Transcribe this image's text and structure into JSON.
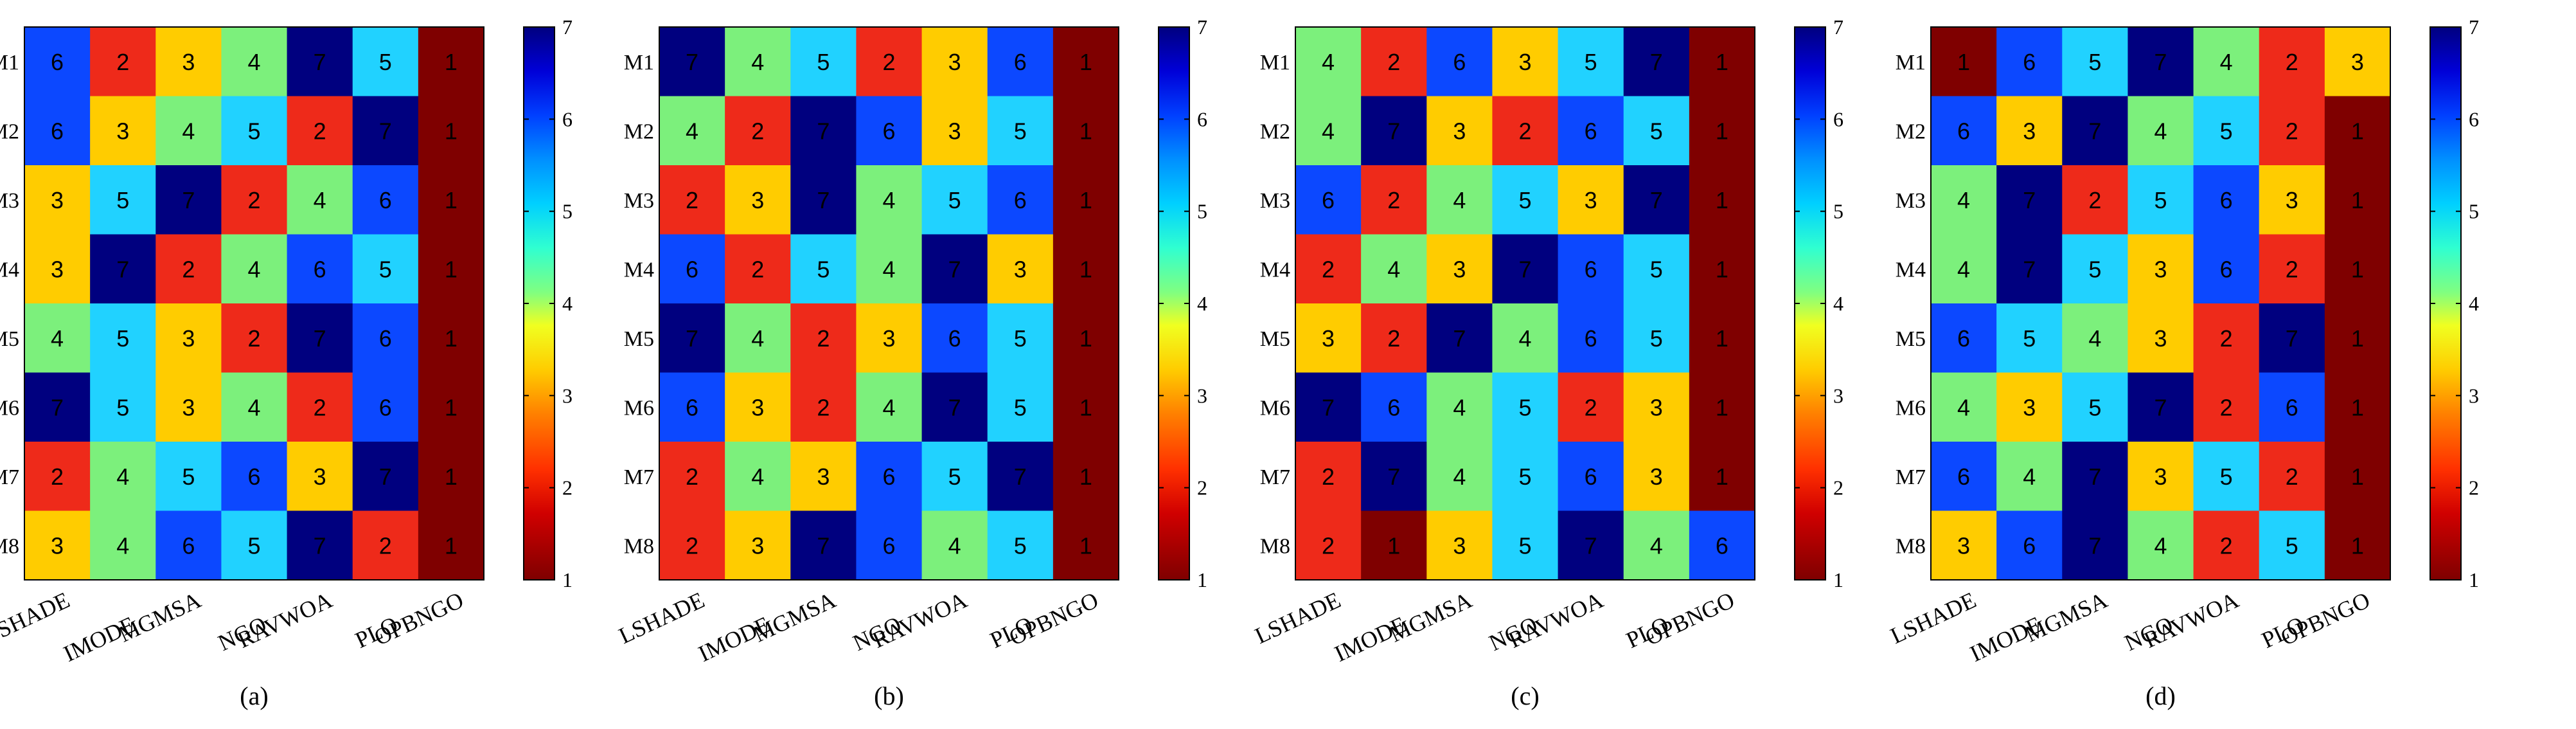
{
  "chart_data": [
    {
      "type": "heatmap",
      "panel_label": "(a)",
      "rows": [
        "M1",
        "M2",
        "M3",
        "M4",
        "M5",
        "M6",
        "M7",
        "M8"
      ],
      "columns": [
        "LSHADE",
        "IMODE",
        "MGMSA",
        "NGO",
        "RAVWOA",
        "PLO",
        "OPBNGO"
      ],
      "values": [
        [
          6,
          2,
          3,
          4,
          7,
          5,
          1
        ],
        [
          6,
          3,
          4,
          5,
          2,
          7,
          1
        ],
        [
          3,
          5,
          7,
          2,
          4,
          6,
          1
        ],
        [
          3,
          7,
          2,
          4,
          6,
          5,
          1
        ],
        [
          4,
          5,
          3,
          2,
          7,
          6,
          1
        ],
        [
          7,
          5,
          3,
          4,
          2,
          6,
          1
        ],
        [
          2,
          4,
          5,
          6,
          3,
          7,
          1
        ],
        [
          3,
          4,
          6,
          5,
          7,
          2,
          1
        ]
      ],
      "colorbar": {
        "min": 1,
        "max": 7,
        "ticks": [
          "1",
          "2",
          "3",
          "4",
          "5",
          "6",
          "7"
        ]
      }
    },
    {
      "type": "heatmap",
      "panel_label": "(b)",
      "rows": [
        "M1",
        "M2",
        "M3",
        "M4",
        "M5",
        "M6",
        "M7",
        "M8"
      ],
      "columns": [
        "LSHADE",
        "IMODE",
        "MGMSA",
        "NGO",
        "RAVWOA",
        "PLO",
        "OPBNGO"
      ],
      "values": [
        [
          7,
          4,
          5,
          2,
          3,
          6,
          1
        ],
        [
          4,
          2,
          7,
          6,
          3,
          5,
          1
        ],
        [
          2,
          3,
          7,
          4,
          5,
          6,
          1
        ],
        [
          6,
          2,
          5,
          4,
          7,
          3,
          1
        ],
        [
          7,
          4,
          2,
          3,
          6,
          5,
          1
        ],
        [
          6,
          3,
          2,
          4,
          7,
          5,
          1
        ],
        [
          2,
          4,
          3,
          6,
          5,
          7,
          1
        ],
        [
          2,
          3,
          7,
          6,
          4,
          5,
          1
        ]
      ],
      "colorbar": {
        "min": 1,
        "max": 7,
        "ticks": [
          "1",
          "2",
          "3",
          "4",
          "5",
          "6",
          "7"
        ]
      }
    },
    {
      "type": "heatmap",
      "panel_label": "(c)",
      "rows": [
        "M1",
        "M2",
        "M3",
        "M4",
        "M5",
        "M6",
        "M7",
        "M8"
      ],
      "columns": [
        "LSHADE",
        "IMODE",
        "MGMSA",
        "NGO",
        "RAVWOA",
        "PLO",
        "OPBNGO"
      ],
      "values": [
        [
          4,
          2,
          6,
          3,
          5,
          7,
          1
        ],
        [
          4,
          7,
          3,
          2,
          6,
          5,
          1
        ],
        [
          6,
          2,
          4,
          5,
          3,
          7,
          1
        ],
        [
          2,
          4,
          3,
          7,
          6,
          5,
          1
        ],
        [
          3,
          2,
          7,
          4,
          6,
          5,
          1
        ],
        [
          7,
          6,
          4,
          5,
          2,
          3,
          1
        ],
        [
          2,
          7,
          4,
          5,
          6,
          3,
          1
        ],
        [
          2,
          1,
          3,
          5,
          7,
          4,
          6
        ]
      ],
      "colorbar": {
        "min": 1,
        "max": 7,
        "ticks": [
          "1",
          "2",
          "3",
          "4",
          "5",
          "6",
          "7"
        ]
      }
    },
    {
      "type": "heatmap",
      "panel_label": "(d)",
      "rows": [
        "M1",
        "M2",
        "M3",
        "M4",
        "M5",
        "M6",
        "M7",
        "M8"
      ],
      "columns": [
        "LSHADE",
        "IMODE",
        "MGMSA",
        "NGO",
        "RAVWOA",
        "PLO",
        "OPBNGO"
      ],
      "values": [
        [
          1,
          6,
          5,
          7,
          4,
          2,
          3
        ],
        [
          6,
          3,
          7,
          4,
          5,
          2,
          1
        ],
        [
          4,
          7,
          2,
          5,
          6,
          3,
          1
        ],
        [
          4,
          7,
          5,
          3,
          6,
          2,
          1
        ],
        [
          6,
          5,
          4,
          3,
          2,
          7,
          1
        ],
        [
          4,
          3,
          5,
          7,
          2,
          6,
          1
        ],
        [
          6,
          4,
          7,
          3,
          5,
          2,
          1
        ],
        [
          3,
          6,
          7,
          4,
          2,
          5,
          1
        ]
      ],
      "colorbar": {
        "min": 1,
        "max": 7,
        "ticks": [
          "1",
          "2",
          "3",
          "4",
          "5",
          "6",
          "7"
        ]
      }
    }
  ],
  "colors": {
    "1": "#7f0000",
    "2": "#ee2a1a",
    "3": "#ffcc00",
    "4": "#7cf07c",
    "5": "#21d2ff",
    "6": "#0c48ff",
    "7": "#00007f"
  }
}
